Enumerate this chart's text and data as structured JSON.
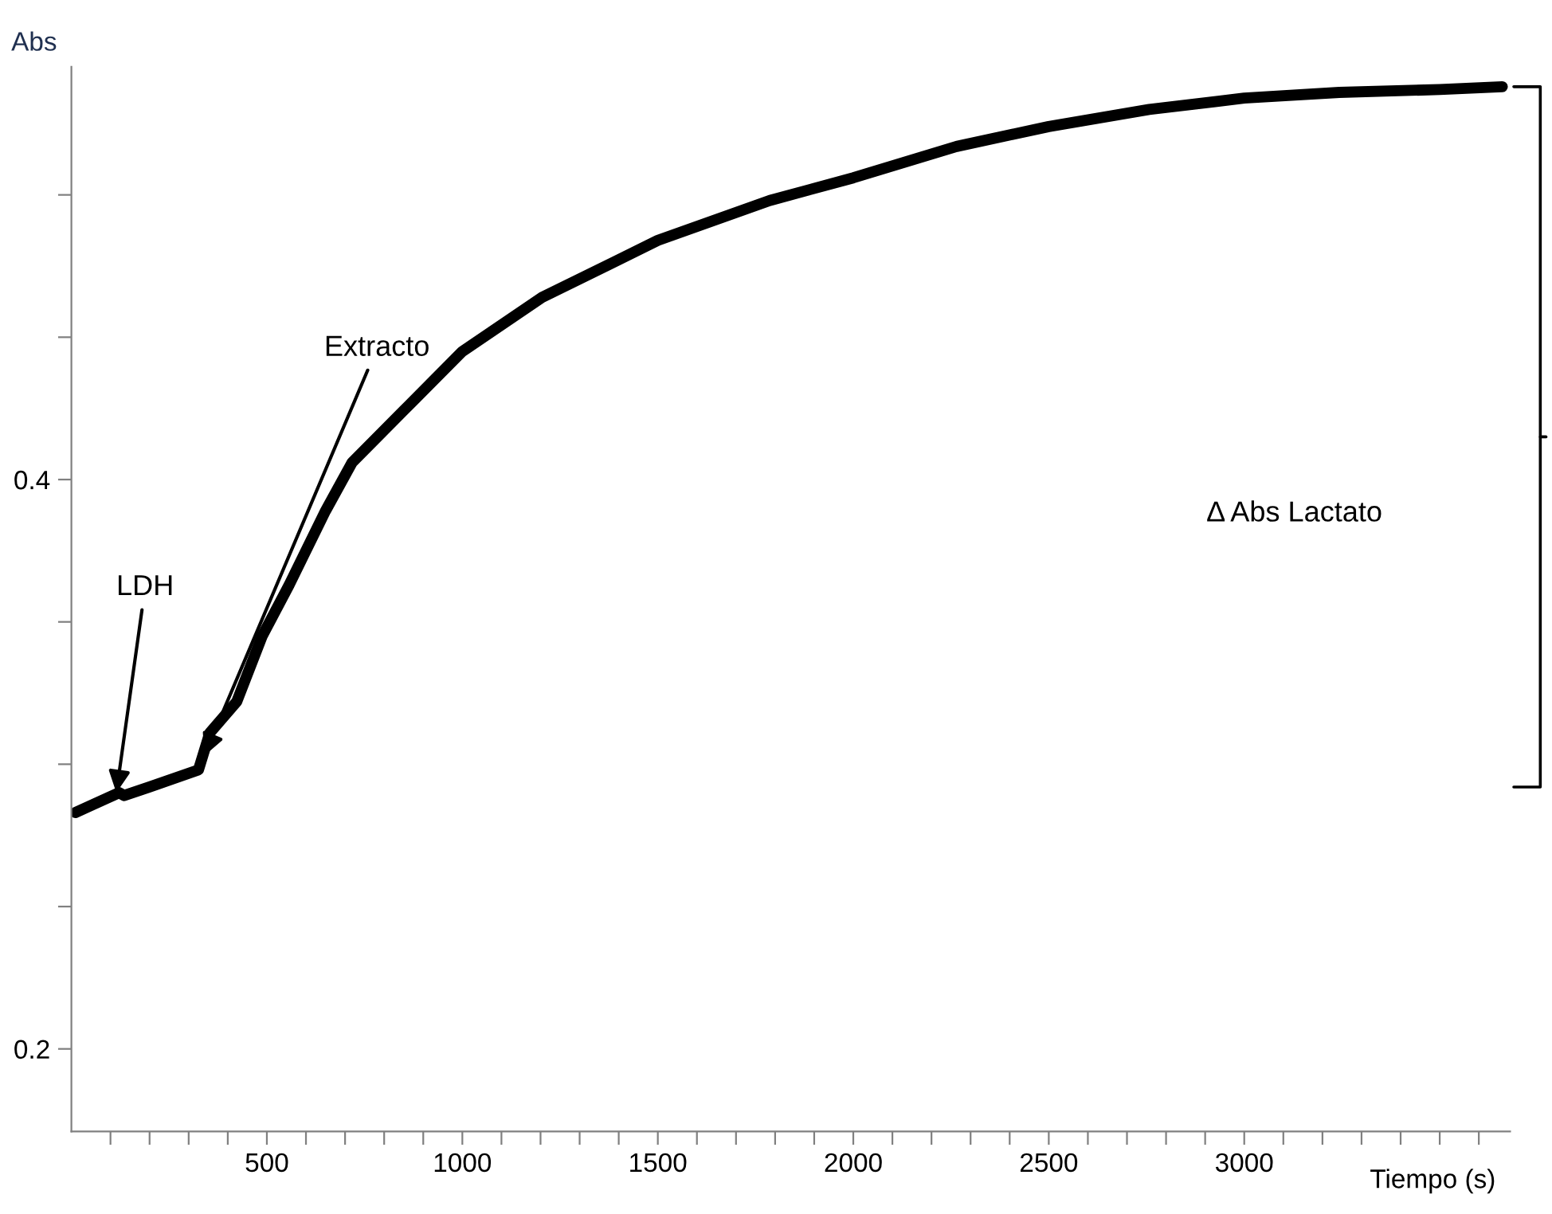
{
  "chart_data": {
    "type": "line",
    "ylabel": "Abs",
    "xlabel": "Tiempo (s)",
    "x": [
      10,
      122,
      135,
      200,
      325,
      354,
      423,
      488,
      557,
      650,
      718,
      1000,
      1204,
      1500,
      1786,
      2000,
      2264,
      2500,
      2757,
      3000,
      3243,
      3500,
      3660
    ],
    "series": [
      {
        "color": "#000000",
        "values": [
          0.283,
          0.29,
          0.289,
          0.292,
          0.298,
          0.311,
          0.322,
          0.345,
          0.363,
          0.389,
          0.406,
          0.445,
          0.464,
          0.484,
          0.498,
          0.506,
          0.517,
          0.524,
          0.53,
          0.534,
          0.536,
          0.537,
          0.538
        ]
      }
    ],
    "xlim": [
      0,
      3680
    ],
    "ylim": [
      0.171,
      0.545
    ],
    "xticks": [
      {
        "value": 100,
        "label": null
      },
      {
        "value": 200,
        "label": null
      },
      {
        "value": 300,
        "label": null
      },
      {
        "value": 400,
        "label": null
      },
      500,
      {
        "value": 600,
        "label": null
      },
      {
        "value": 700,
        "label": null
      },
      {
        "value": 800,
        "label": null
      },
      {
        "value": 900,
        "label": null
      },
      1000,
      {
        "value": 1100,
        "label": null
      },
      {
        "value": 1200,
        "label": null
      },
      {
        "value": 1300,
        "label": null
      },
      {
        "value": 1400,
        "label": null
      },
      1500,
      {
        "value": 1600,
        "label": null
      },
      {
        "value": 1700,
        "label": null
      },
      {
        "value": 1800,
        "label": null
      },
      {
        "value": 1900,
        "label": null
      },
      2000,
      {
        "value": 2100,
        "label": null
      },
      {
        "value": 2200,
        "label": null
      },
      {
        "value": 2300,
        "label": null
      },
      {
        "value": 2400,
        "label": null
      },
      2500,
      {
        "value": 2600,
        "label": null
      },
      {
        "value": 2700,
        "label": null
      },
      {
        "value": 2800,
        "label": null
      },
      {
        "value": 2900,
        "label": null
      },
      3000,
      {
        "value": 3100,
        "label": null
      },
      {
        "value": 3200,
        "label": null
      },
      {
        "value": 3300,
        "label": null
      },
      {
        "value": 3400,
        "label": null
      },
      {
        "value": 3500,
        "label": null
      },
      {
        "value": 3600,
        "label": null
      }
    ],
    "yticks": [
      0.2,
      {
        "value": 0.25,
        "label": null
      },
      {
        "value": 0.3,
        "label": null
      },
      {
        "value": 0.35,
        "label": null
      },
      0.4,
      {
        "value": 0.45,
        "label": null
      },
      {
        "value": 0.5,
        "label": null
      }
    ],
    "grid": false,
    "legend": false,
    "marker": "none",
    "line_style": "solid",
    "annotations": [
      {
        "text": "LDH",
        "x": 115,
        "y": 0.29
      },
      {
        "text": "Extracto",
        "x": 340,
        "y": 0.303
      },
      "Δ Abs Lactato"
    ]
  }
}
